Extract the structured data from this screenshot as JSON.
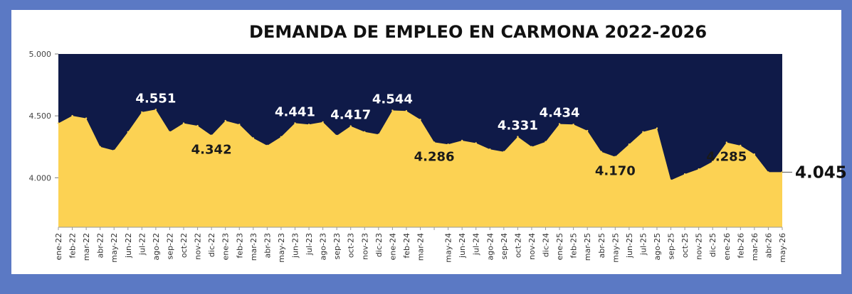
{
  "chart_data": {
    "type": "area",
    "title": "DEMANDA DE EMPLEO EN CARMONA 2022-2026",
    "ylim": [
      3600,
      5000
    ],
    "y_ticks": [
      "5.000",
      "4.500",
      "4.000"
    ],
    "y_tick_values": [
      5000,
      4500,
      4000
    ],
    "x_tick_labels": [
      "ene-22",
      "feb-22",
      "mar-22",
      "abr-22",
      "may-22",
      "jun-22",
      "jul-22",
      "ago-22",
      "sep-22",
      "oct-22",
      "nov-22",
      "dic-22",
      "ene-23",
      "feb-23",
      "mar-23",
      "abr-23",
      "may-23",
      "jun-23",
      "jul-23",
      "ago-23",
      "sep-23",
      "oct-23",
      "nov-23",
      "dic-23",
      "ene-24",
      "feb-24",
      "mar-24",
      "",
      "may-24",
      "jun-24",
      "jul-24",
      "ago-24",
      "sep-24",
      "oct-24",
      "nov-24",
      "dic-24",
      "ene-25",
      "feb-25",
      "mar-25",
      "abr-25",
      "may-25",
      "jun-25",
      "jul-25",
      "ago-25",
      "sep-25",
      "oct-25",
      "nov-25",
      "dic-25",
      "ene-26",
      "feb-26",
      "mar-26",
      "abr-26",
      "may-26"
    ],
    "series": [
      {
        "values": [
          4440,
          4500,
          4480,
          4250,
          4220,
          4370,
          4530,
          4551,
          4370,
          4440,
          4420,
          4342,
          4460,
          4430,
          4320,
          4260,
          4330,
          4441,
          4430,
          4450,
          4340,
          4417,
          4370,
          4350,
          4544,
          4540,
          4470,
          4286,
          4270,
          4300,
          4280,
          4230,
          4210,
          4331,
          4250,
          4290,
          4434,
          4430,
          4380,
          4210,
          4170,
          4270,
          4370,
          4400,
          3980,
          4030,
          4070,
          4130,
          4285,
          4260,
          4190,
          4045,
          4045
        ],
        "color": "#fcd253"
      }
    ],
    "data_labels": [
      {
        "index": 7,
        "text": "4.551"
      },
      {
        "index": 11,
        "text": "4.342"
      },
      {
        "index": 17,
        "text": "4.441"
      },
      {
        "index": 21,
        "text": "4.417"
      },
      {
        "index": 24,
        "text": "4.544"
      },
      {
        "index": 27,
        "text": "4.286"
      },
      {
        "index": 33,
        "text": "4.331"
      },
      {
        "index": 36,
        "text": "4.434"
      },
      {
        "index": 40,
        "text": "4.170"
      },
      {
        "index": 48,
        "text": "4.285"
      },
      {
        "index": 52,
        "text": "4.045"
      }
    ],
    "plot_background": "#0f1a48",
    "grid": false,
    "legend": "none"
  }
}
